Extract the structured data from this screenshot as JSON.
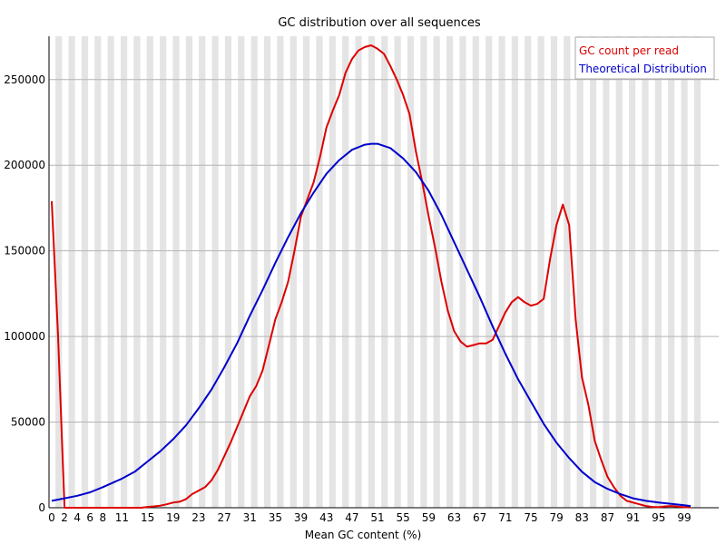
{
  "chart_data": {
    "type": "line",
    "title": "GC distribution over all sequences",
    "xlabel": "Mean GC content (%)",
    "ylabel": "",
    "xlim": [
      0,
      100
    ],
    "ylim": [
      0,
      270000
    ],
    "grid": true,
    "background_bands": "alternating light grey vertical bands",
    "legend_position": "top-right",
    "x_ticks": [
      "0",
      "2",
      "4",
      "6",
      "8",
      "11",
      "15",
      "19",
      "23",
      "27",
      "31",
      "35",
      "39",
      "43",
      "47",
      "51",
      "55",
      "59",
      "63",
      "67",
      "71",
      "75",
      "79",
      "83",
      "87",
      "91",
      "95",
      "99"
    ],
    "y_ticks": [
      0,
      50000,
      100000,
      150000,
      200000,
      250000
    ],
    "series": [
      {
        "name": "GC count per read",
        "color": "#dd0000",
        "x": [
          0,
          1,
          2,
          3,
          4,
          5,
          6,
          7,
          8,
          9,
          10,
          11,
          12,
          13,
          14,
          15,
          16,
          17,
          18,
          19,
          20,
          21,
          22,
          23,
          24,
          25,
          26,
          27,
          28,
          29,
          30,
          31,
          32,
          33,
          34,
          35,
          36,
          37,
          38,
          39,
          40,
          41,
          42,
          43,
          44,
          45,
          46,
          47,
          48,
          49,
          50,
          51,
          52,
          53,
          54,
          55,
          56,
          57,
          58,
          59,
          60,
          61,
          62,
          63,
          64,
          65,
          66,
          67,
          68,
          69,
          70,
          71,
          72,
          73,
          74,
          75,
          76,
          77,
          78,
          79,
          80,
          81,
          82,
          83,
          84,
          85,
          86,
          87,
          88,
          89,
          90,
          91,
          92,
          93,
          94,
          95,
          96,
          97,
          98,
          99,
          100
        ],
        "values": [
          179000,
          100000,
          0,
          0,
          0,
          0,
          0,
          0,
          0,
          0,
          0,
          0,
          0,
          0,
          0,
          500,
          800,
          1200,
          2000,
          3000,
          3500,
          5000,
          8000,
          10000,
          12000,
          16000,
          22000,
          30000,
          38000,
          47000,
          56000,
          65000,
          71000,
          80000,
          95000,
          110000,
          120000,
          132000,
          150000,
          170000,
          180000,
          190000,
          205000,
          222000,
          232000,
          241000,
          254000,
          262000,
          267000,
          269000,
          270000,
          268000,
          265000,
          258000,
          250000,
          241000,
          230000,
          208000,
          190000,
          170000,
          152000,
          132000,
          115000,
          103000,
          97000,
          94000,
          95000,
          96000,
          96000,
          98000,
          106000,
          114000,
          120000,
          123000,
          120000,
          118000,
          119000,
          122000,
          145000,
          165000,
          177000,
          165000,
          110000,
          76000,
          60000,
          39000,
          28000,
          18000,
          12000,
          7000,
          4000,
          3000,
          2000,
          1000,
          500,
          300,
          800,
          1000,
          700,
          300,
          200
        ]
      },
      {
        "name": "Theoretical Distribution",
        "color": "#0000cc",
        "x": [
          0,
          2,
          4,
          6,
          8,
          11,
          13,
          15,
          17,
          19,
          21,
          23,
          25,
          27,
          29,
          31,
          33,
          35,
          37,
          39,
          41,
          43,
          45,
          47,
          49,
          50,
          51,
          53,
          55,
          57,
          59,
          61,
          63,
          65,
          67,
          69,
          71,
          73,
          75,
          77,
          79,
          81,
          83,
          85,
          87,
          89,
          91,
          93,
          95,
          97,
          99,
          100
        ],
        "values": [
          4000,
          5500,
          7000,
          9000,
          12000,
          17000,
          21000,
          27000,
          33000,
          40000,
          48000,
          58000,
          69000,
          82000,
          96000,
          112000,
          127000,
          143000,
          158000,
          172000,
          184000,
          195000,
          203000,
          209000,
          212000,
          212500,
          212500,
          210000,
          204000,
          196000,
          185000,
          171000,
          155000,
          139000,
          123000,
          106000,
          90000,
          75000,
          62000,
          49000,
          38000,
          29000,
          21000,
          15000,
          11000,
          8000,
          5500,
          4000,
          3000,
          2200,
          1500,
          1000
        ]
      }
    ]
  }
}
